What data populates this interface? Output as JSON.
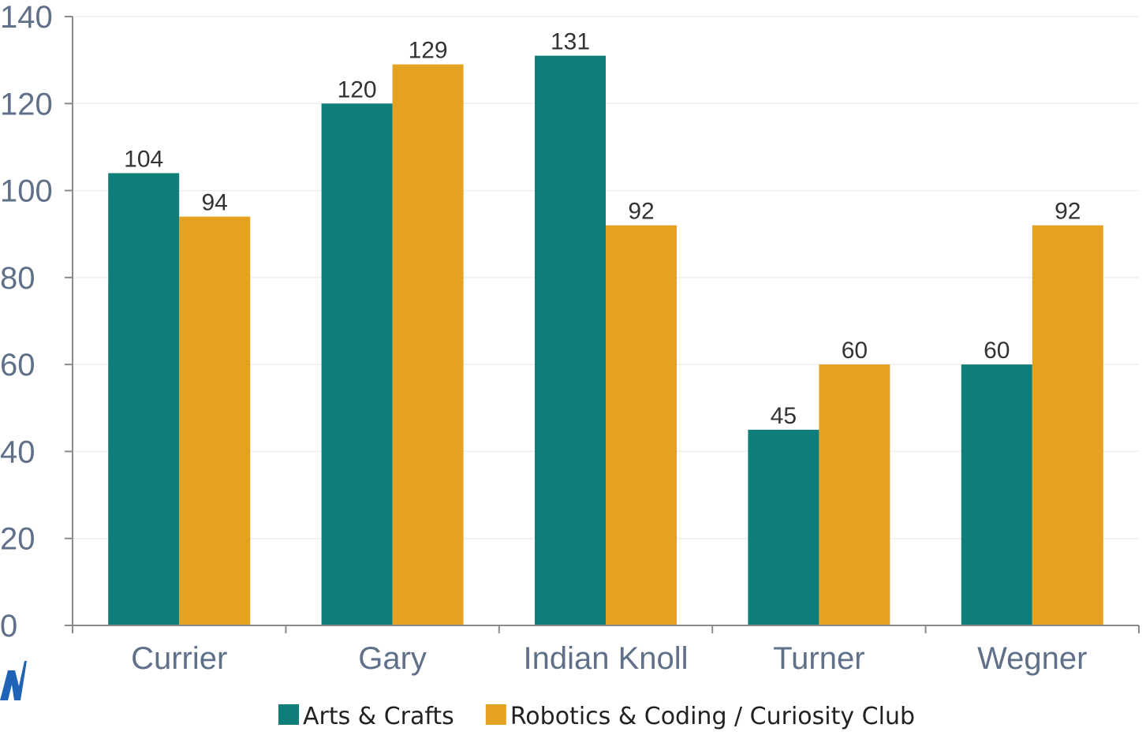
{
  "chart_data": {
    "type": "bar",
    "categories": [
      "Currier",
      "Gary",
      "Indian Knoll",
      "Turner",
      "Wegner"
    ],
    "series": [
      {
        "name": "Arts & Crafts",
        "values": [
          104,
          120,
          131,
          45,
          60
        ],
        "color": "#0f7d7a"
      },
      {
        "name": "Robotics & Coding / Curiosity Club",
        "values": [
          94,
          129,
          92,
          60,
          92
        ],
        "color": "#e5a120"
      }
    ],
    "yticks": [
      "0",
      "20",
      "40",
      "60",
      "80",
      "100",
      "120",
      "140"
    ],
    "ylim": [
      0,
      140
    ],
    "grid": true,
    "legend_position": "bottom",
    "data_labels": true
  },
  "colors": {
    "axis": "#8a8a8a",
    "grid": "#eeeeee",
    "logo": "#1e63b5"
  },
  "logo_icon": "stylized-m-logo-icon"
}
